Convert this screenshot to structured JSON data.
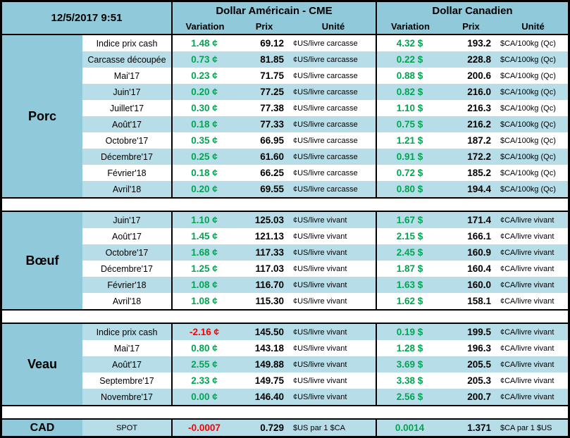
{
  "header": {
    "timestamp": "12/5/2017 9:51",
    "usd_title": "Dollar Américain - CME",
    "cad_title": "Dollar Canadien",
    "col_variation": "Variation",
    "col_prix": "Prix",
    "col_unite": "Unité"
  },
  "colors": {
    "header_bg": "#8fc9da",
    "row_alt_bg": "#b7dee8",
    "positive": "#00a651",
    "negative": "#ff0000"
  },
  "sections": [
    {
      "label": "Porc",
      "rows": [
        {
          "label": "Indice prix cash",
          "us_variation": "1.48 ¢",
          "us_prix": "69.12",
          "us_unite": "¢US/livre carcasse",
          "ca_variation": "4.32 $",
          "ca_prix": "193.2",
          "ca_unite": "$CA/100kg (Qc)"
        },
        {
          "label": "Carcasse découpée",
          "us_variation": "0.73 ¢",
          "us_prix": "81.85",
          "us_unite": "¢US/livre carcasse",
          "ca_variation": "0.22 $",
          "ca_prix": "228.8",
          "ca_unite": "$CA/100kg (Qc)"
        },
        {
          "label": "Mai'17",
          "us_variation": "0.23 ¢",
          "us_prix": "71.75",
          "us_unite": "¢US/livre carcasse",
          "ca_variation": "0.88 $",
          "ca_prix": "200.6",
          "ca_unite": "$CA/100kg (Qc)"
        },
        {
          "label": "Juin'17",
          "us_variation": "0.20 ¢",
          "us_prix": "77.25",
          "us_unite": "¢US/livre carcasse",
          "ca_variation": "0.82 $",
          "ca_prix": "216.0",
          "ca_unite": "$CA/100kg (Qc)"
        },
        {
          "label": "Juillet'17",
          "us_variation": "0.30 ¢",
          "us_prix": "77.38",
          "us_unite": "¢US/livre carcasse",
          "ca_variation": "1.10 $",
          "ca_prix": "216.3",
          "ca_unite": "$CA/100kg (Qc)"
        },
        {
          "label": "Août'17",
          "us_variation": "0.18 ¢",
          "us_prix": "77.33",
          "us_unite": "¢US/livre carcasse",
          "ca_variation": "0.75 $",
          "ca_prix": "216.2",
          "ca_unite": "$CA/100kg (Qc)"
        },
        {
          "label": "Octobre'17",
          "us_variation": "0.35 ¢",
          "us_prix": "66.95",
          "us_unite": "¢US/livre carcasse",
          "ca_variation": "1.21 $",
          "ca_prix": "187.2",
          "ca_unite": "$CA/100kg (Qc)"
        },
        {
          "label": "Décembre'17",
          "us_variation": "0.25 ¢",
          "us_prix": "61.60",
          "us_unite": "¢US/livre carcasse",
          "ca_variation": "0.91 $",
          "ca_prix": "172.2",
          "ca_unite": "$CA/100kg (Qc)"
        },
        {
          "label": "Février'18",
          "us_variation": "0.18 ¢",
          "us_prix": "66.25",
          "us_unite": "¢US/livre carcasse",
          "ca_variation": "0.72 $",
          "ca_prix": "185.2",
          "ca_unite": "$CA/100kg (Qc)"
        },
        {
          "label": "Avril'18",
          "us_variation": "0.20 ¢",
          "us_prix": "69.55",
          "us_unite": "¢US/livre carcasse",
          "ca_variation": "0.80 $",
          "ca_prix": "194.4",
          "ca_unite": "$CA/100kg (Qc)"
        }
      ]
    },
    {
      "label": "Bœuf",
      "rows": [
        {
          "label": "Juin'17",
          "us_variation": "1.10 ¢",
          "us_prix": "125.03",
          "us_unite": "¢US/livre vivant",
          "ca_variation": "1.67 $",
          "ca_prix": "171.4",
          "ca_unite": "¢CA/livre vivant"
        },
        {
          "label": "Août'17",
          "us_variation": "1.45 ¢",
          "us_prix": "121.13",
          "us_unite": "¢US/livre vivant",
          "ca_variation": "2.15 $",
          "ca_prix": "166.1",
          "ca_unite": "¢CA/livre vivant"
        },
        {
          "label": "Octobre'17",
          "us_variation": "1.68 ¢",
          "us_prix": "117.33",
          "us_unite": "¢US/livre vivant",
          "ca_variation": "2.45 $",
          "ca_prix": "160.9",
          "ca_unite": "¢CA/livre vivant"
        },
        {
          "label": "Décembre'17",
          "us_variation": "1.25 ¢",
          "us_prix": "117.03",
          "us_unite": "¢US/livre vivant",
          "ca_variation": "1.87 $",
          "ca_prix": "160.4",
          "ca_unite": "¢CA/livre vivant"
        },
        {
          "label": "Février'18",
          "us_variation": "1.08 ¢",
          "us_prix": "116.70",
          "us_unite": "¢US/livre vivant",
          "ca_variation": "1.63 $",
          "ca_prix": "160.0",
          "ca_unite": "¢CA/livre vivant"
        },
        {
          "label": "Avril'18",
          "us_variation": "1.08 ¢",
          "us_prix": "115.30",
          "us_unite": "¢US/livre vivant",
          "ca_variation": "1.62 $",
          "ca_prix": "158.1",
          "ca_unite": "¢CA/livre vivant"
        }
      ]
    },
    {
      "label": "Veau",
      "rows": [
        {
          "label": "Indice prix cash",
          "us_variation": "-2.16 ¢",
          "us_prix": "145.50",
          "us_unite": "¢US/livre vivant",
          "ca_variation": "0.19 $",
          "ca_prix": "199.5",
          "ca_unite": "¢CA/livre vivant"
        },
        {
          "label": "Mai'17",
          "us_variation": "0.80 ¢",
          "us_prix": "143.18",
          "us_unite": "¢US/livre vivant",
          "ca_variation": "1.28 $",
          "ca_prix": "196.3",
          "ca_unite": "¢CA/livre vivant"
        },
        {
          "label": "Août'17",
          "us_variation": "2.55 ¢",
          "us_prix": "149.88",
          "us_unite": "¢US/livre vivant",
          "ca_variation": "3.69 $",
          "ca_prix": "205.5",
          "ca_unite": "¢CA/livre vivant"
        },
        {
          "label": "Septembre'17",
          "us_variation": "2.33 ¢",
          "us_prix": "149.75",
          "us_unite": "¢US/livre vivant",
          "ca_variation": "3.38 $",
          "ca_prix": "205.3",
          "ca_unite": "¢CA/livre vivant"
        },
        {
          "label": "Novembre'17",
          "us_variation": "0.00 ¢",
          "us_prix": "146.40",
          "us_unite": "¢US/livre vivant",
          "ca_variation": "2.56 $",
          "ca_prix": "200.7",
          "ca_unite": "¢CA/livre vivant"
        }
      ]
    }
  ],
  "spot_row": {
    "label": "CAD",
    "sublabel": "SPOT",
    "us_variation": "-0.0007",
    "us_prix": "0.729",
    "us_unite": "$US par 1 $CA",
    "ca_variation": "0.0014",
    "ca_prix": "1.371",
    "ca_unite": "$CA par 1 $US"
  }
}
